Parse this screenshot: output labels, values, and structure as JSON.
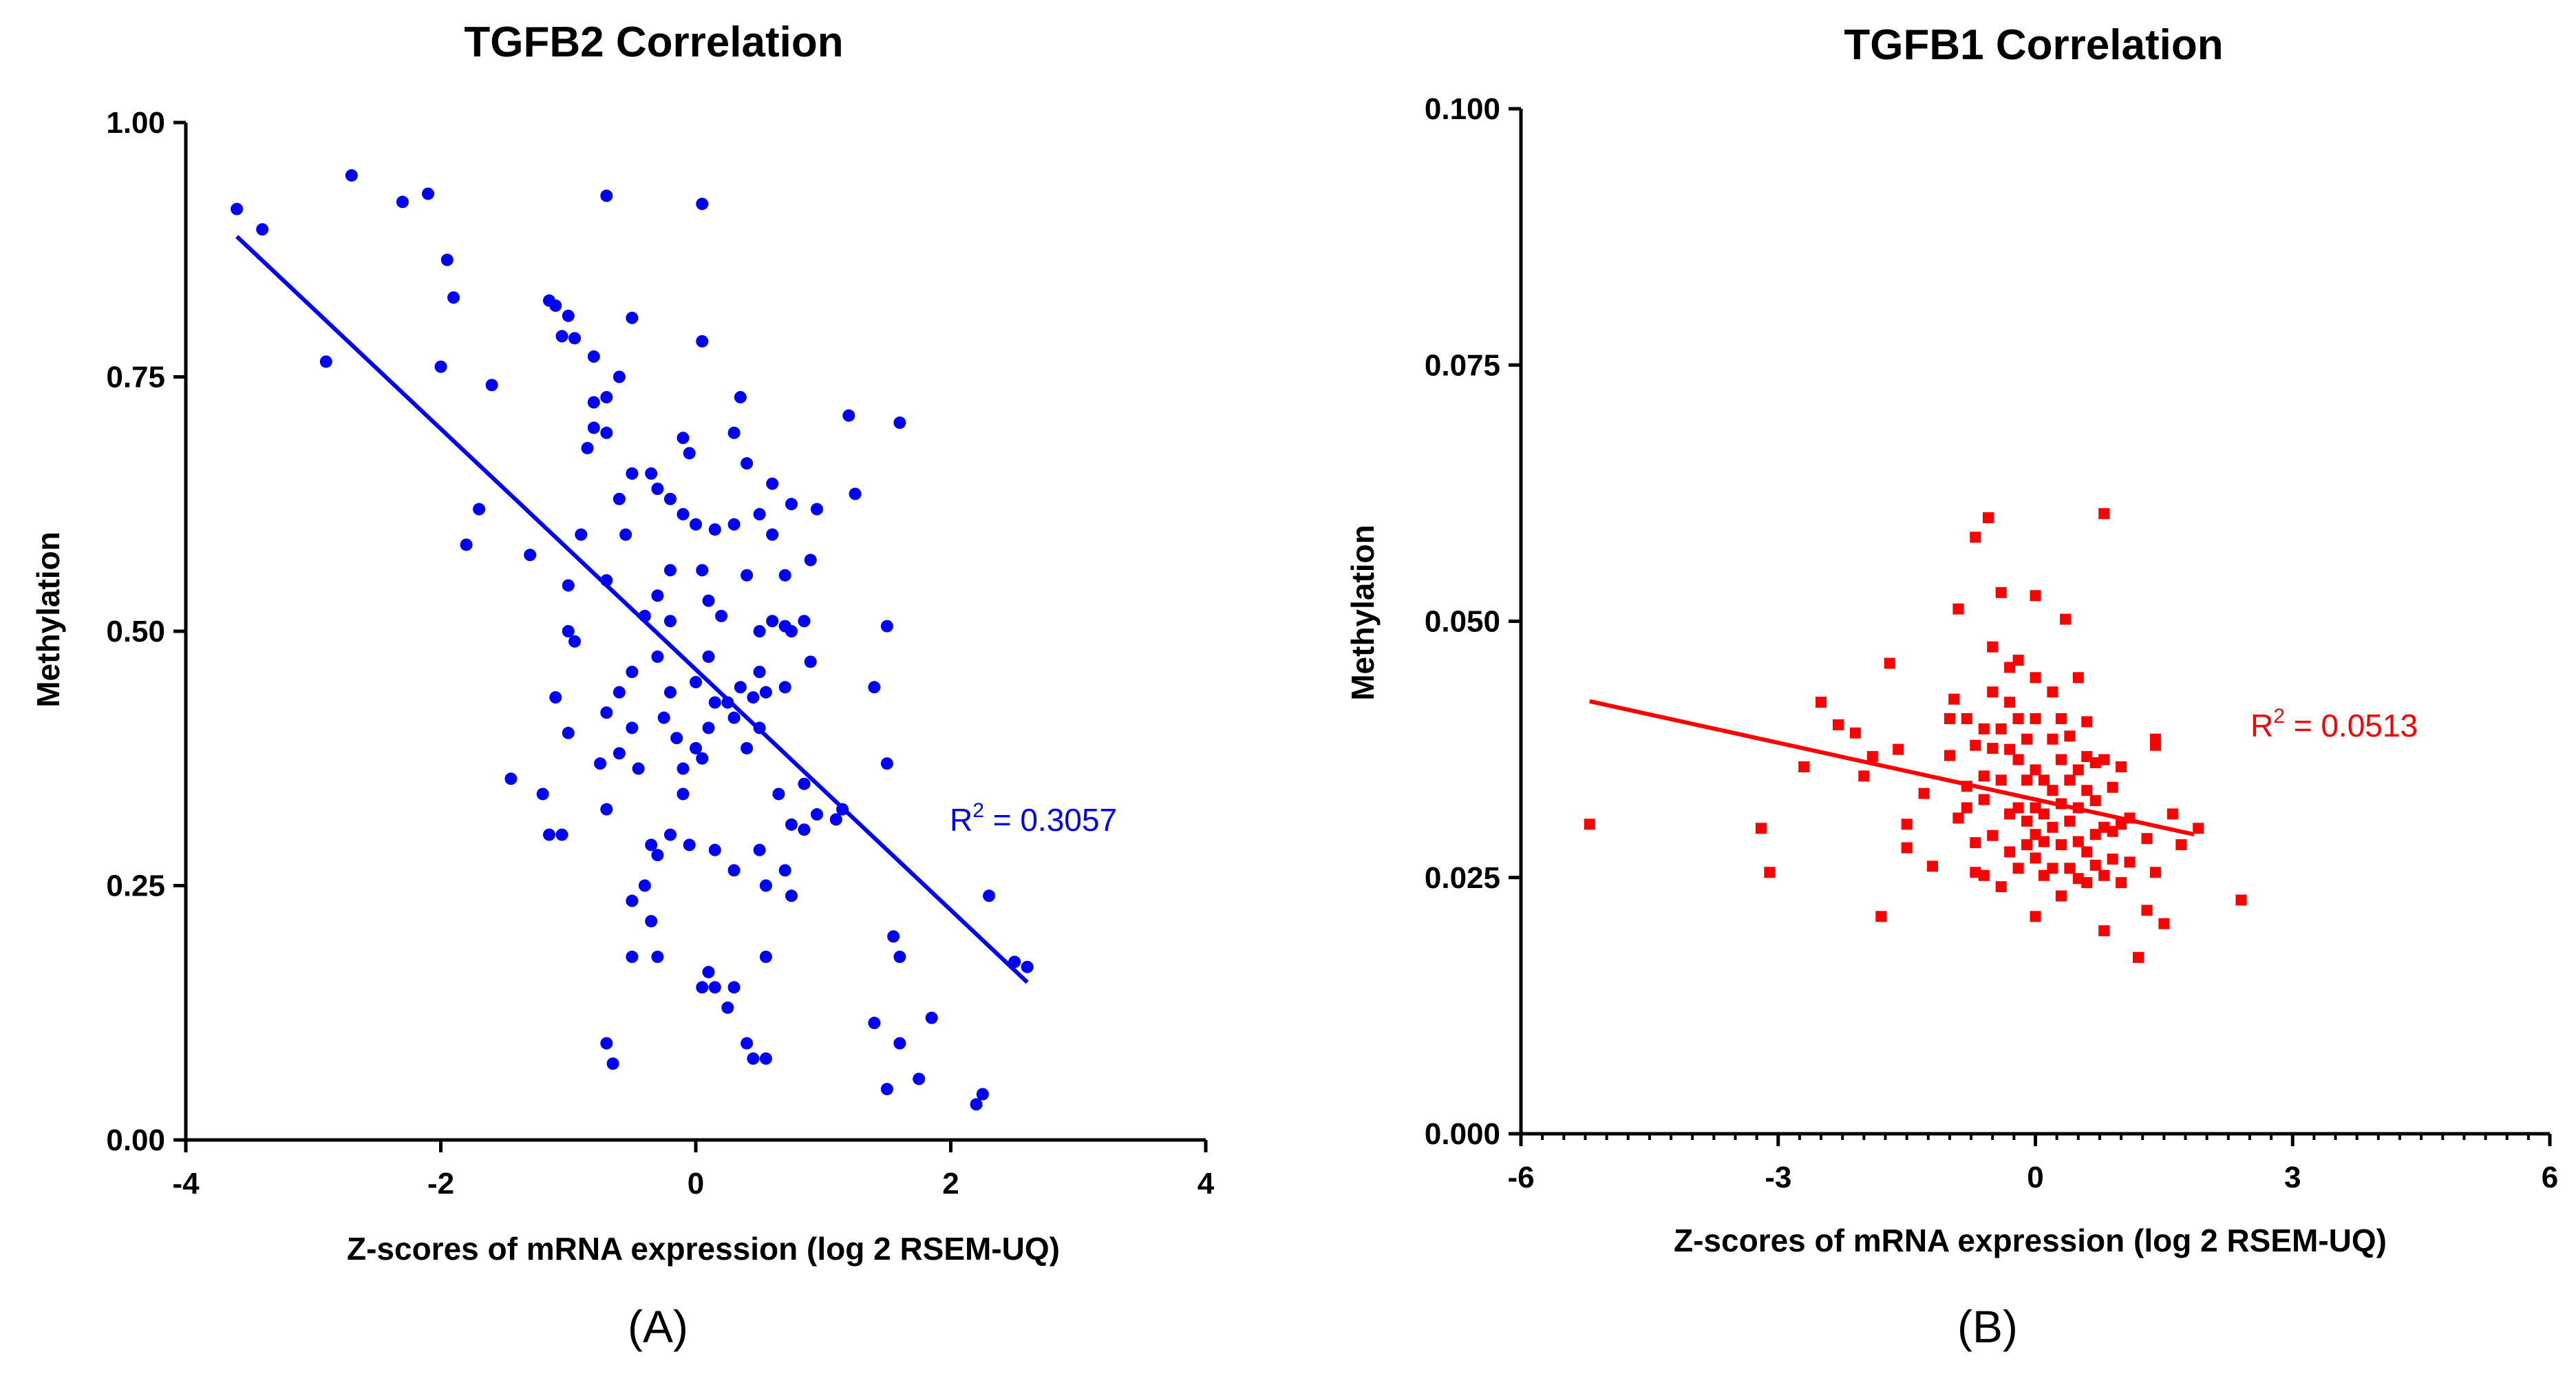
{
  "chart_data": [
    {
      "type": "scatter",
      "panel_label": "(A)",
      "title": "TGFB2 Correlation",
      "xlabel": "Z-scores of mRNA expression (log 2 RSEM-UQ)",
      "ylabel": "Methylation",
      "xlim": [
        -4,
        4
      ],
      "ylim": [
        0,
        1
      ],
      "xticks": [
        -4,
        -2,
        0,
        2,
        4
      ],
      "xtick_labels": [
        "-4",
        "-2",
        "0",
        "2",
        "4"
      ],
      "yticks": [
        0,
        0.25,
        0.5,
        0.75,
        1
      ],
      "ytick_labels": [
        "0.00",
        "0.25",
        "0.50",
        "0.75",
        "1.00"
      ],
      "minor_ticks": false,
      "color": "#0000ff",
      "marker": "circle",
      "annotation": {
        "prefix": "R",
        "sup": "2",
        "suffix": " = 0.3057",
        "position": "right of line, below middle"
      },
      "fit_line": {
        "x1": -3.6,
        "y1": 0.888,
        "x2": 2.6,
        "y2": 0.155
      },
      "points": [
        [
          -3.6,
          0.915
        ],
        [
          -3.4,
          0.895
        ],
        [
          -2.7,
          0.948
        ],
        [
          -2.3,
          0.922
        ],
        [
          -2.1,
          0.93
        ],
        [
          -1.95,
          0.865
        ],
        [
          -1.9,
          0.828
        ],
        [
          -2.9,
          0.765
        ],
        [
          -2.0,
          0.76
        ],
        [
          -1.6,
          0.742
        ],
        [
          -1.7,
          0.62
        ],
        [
          -1.8,
          0.585
        ],
        [
          -1.3,
          0.575
        ],
        [
          -0.7,
          0.928
        ],
        [
          0.05,
          0.92
        ],
        [
          -1.15,
          0.825
        ],
        [
          -1.1,
          0.82
        ],
        [
          -1.0,
          0.81
        ],
        [
          -1.05,
          0.79
        ],
        [
          -0.95,
          0.788
        ],
        [
          -0.8,
          0.77
        ],
        [
          -0.5,
          0.808
        ],
        [
          0.05,
          0.785
        ],
        [
          -0.6,
          0.75
        ],
        [
          -0.7,
          0.73
        ],
        [
          -0.8,
          0.725
        ],
        [
          -0.8,
          0.7
        ],
        [
          -0.7,
          0.695
        ],
        [
          -0.85,
          0.68
        ],
        [
          0.35,
          0.73
        ],
        [
          0.3,
          0.695
        ],
        [
          0.4,
          0.665
        ],
        [
          0.6,
          0.645
        ],
        [
          1.2,
          0.712
        ],
        [
          1.6,
          0.705
        ],
        [
          1.25,
          0.635
        ],
        [
          -0.1,
          0.69
        ],
        [
          -0.05,
          0.675
        ],
        [
          -0.5,
          0.655
        ],
        [
          -0.35,
          0.655
        ],
        [
          -0.6,
          0.63
        ],
        [
          -0.3,
          0.64
        ],
        [
          -0.2,
          0.63
        ],
        [
          -0.1,
          0.615
        ],
        [
          0.0,
          0.605
        ],
        [
          0.15,
          0.6
        ],
        [
          0.3,
          0.605
        ],
        [
          0.5,
          0.615
        ],
        [
          0.6,
          0.595
        ],
        [
          0.75,
          0.625
        ],
        [
          0.95,
          0.62
        ],
        [
          0.9,
          0.57
        ],
        [
          -0.9,
          0.595
        ],
        [
          -0.55,
          0.595
        ],
        [
          -0.2,
          0.56
        ],
        [
          0.05,
          0.56
        ],
        [
          0.4,
          0.555
        ],
        [
          0.7,
          0.555
        ],
        [
          -0.7,
          0.55
        ],
        [
          -0.3,
          0.535
        ],
        [
          0.1,
          0.53
        ],
        [
          -1.0,
          0.545
        ],
        [
          -1.0,
          0.5
        ],
        [
          -0.95,
          0.49
        ],
        [
          -0.4,
          0.515
        ],
        [
          -0.2,
          0.51
        ],
        [
          0.2,
          0.515
        ],
        [
          0.5,
          0.5
        ],
        [
          0.6,
          0.51
        ],
        [
          0.7,
          0.505
        ],
        [
          0.75,
          0.5
        ],
        [
          0.85,
          0.51
        ],
        [
          1.5,
          0.505
        ],
        [
          0.9,
          0.47
        ],
        [
          1.4,
          0.445
        ],
        [
          0.1,
          0.475
        ],
        [
          0.5,
          0.46
        ],
        [
          -0.5,
          0.46
        ],
        [
          -0.3,
          0.475
        ],
        [
          0.35,
          0.445
        ],
        [
          0.45,
          0.435
        ],
        [
          -0.6,
          0.44
        ],
        [
          -1.1,
          0.435
        ],
        [
          -0.2,
          0.44
        ],
        [
          0.0,
          0.45
        ],
        [
          0.15,
          0.43
        ],
        [
          0.25,
          0.43
        ],
        [
          0.55,
          0.44
        ],
        [
          0.7,
          0.445
        ],
        [
          -0.7,
          0.42
        ],
        [
          -0.25,
          0.415
        ],
        [
          -0.15,
          0.395
        ],
        [
          0.1,
          0.405
        ],
        [
          0.3,
          0.415
        ],
        [
          0.5,
          0.405
        ],
        [
          -1.0,
          0.4
        ],
        [
          -0.5,
          0.405
        ],
        [
          0.0,
          0.385
        ],
        [
          0.05,
          0.375
        ],
        [
          -0.1,
          0.365
        ],
        [
          0.4,
          0.385
        ],
        [
          -0.75,
          0.37
        ],
        [
          -0.6,
          0.38
        ],
        [
          -0.45,
          0.365
        ],
        [
          -1.45,
          0.355
        ],
        [
          -1.2,
          0.34
        ],
        [
          -0.1,
          0.34
        ],
        [
          0.65,
          0.34
        ],
        [
          0.85,
          0.35
        ],
        [
          0.75,
          0.31
        ],
        [
          0.95,
          0.32
        ],
        [
          1.15,
          0.325
        ],
        [
          -1.05,
          0.3
        ],
        [
          -1.15,
          0.3
        ],
        [
          -0.7,
          0.325
        ],
        [
          -0.35,
          0.29
        ],
        [
          -0.2,
          0.3
        ],
        [
          -0.05,
          0.29
        ],
        [
          0.15,
          0.285
        ],
        [
          0.5,
          0.285
        ],
        [
          0.85,
          0.305
        ],
        [
          1.1,
          0.315
        ],
        [
          -0.4,
          0.25
        ],
        [
          -0.3,
          0.28
        ],
        [
          0.3,
          0.265
        ],
        [
          0.55,
          0.25
        ],
        [
          0.7,
          0.265
        ],
        [
          -0.5,
          0.235
        ],
        [
          -0.35,
          0.215
        ],
        [
          0.75,
          0.24
        ],
        [
          1.5,
          0.37
        ],
        [
          2.3,
          0.24
        ],
        [
          1.55,
          0.2
        ],
        [
          1.6,
          0.18
        ],
        [
          2.5,
          0.175
        ],
        [
          2.6,
          0.17
        ],
        [
          -0.5,
          0.18
        ],
        [
          -0.3,
          0.18
        ],
        [
          0.1,
          0.165
        ],
        [
          0.3,
          0.15
        ],
        [
          0.55,
          0.18
        ],
        [
          0.05,
          0.15
        ],
        [
          0.15,
          0.15
        ],
        [
          0.25,
          0.13
        ],
        [
          0.4,
          0.095
        ],
        [
          0.45,
          0.08
        ],
        [
          0.55,
          0.08
        ],
        [
          -0.7,
          0.095
        ],
        [
          -0.65,
          0.075
        ],
        [
          1.4,
          0.115
        ],
        [
          1.6,
          0.095
        ],
        [
          1.85,
          0.12
        ],
        [
          1.75,
          0.06
        ],
        [
          1.5,
          0.05
        ],
        [
          2.2,
          0.035
        ],
        [
          2.25,
          0.045
        ]
      ]
    },
    {
      "type": "scatter",
      "panel_label": "(B)",
      "title": "TGFB1 Correlation",
      "xlabel": "Z-scores of mRNA expression (log 2 RSEM-UQ)",
      "ylabel": "Methylation",
      "xlim": [
        -6,
        6
      ],
      "ylim": [
        0,
        0.1
      ],
      "xticks": [
        -6,
        -3,
        0,
        3,
        6
      ],
      "xtick_labels": [
        "-6",
        "-3",
        "0",
        "3",
        "6"
      ],
      "yticks": [
        0,
        0.025,
        0.05,
        0.075,
        0.1
      ],
      "ytick_labels": [
        "0.000",
        "0.025",
        "0.050",
        "0.075",
        "0.100"
      ],
      "minor_ticks": true,
      "color": "#ff0000",
      "marker": "square",
      "annotation": {
        "prefix": "R",
        "sup": "2",
        "suffix": " = 0.0513",
        "position": "upper right"
      },
      "fit_line": {
        "x1": -5.2,
        "y1": 0.0422,
        "x2": 1.85,
        "y2": 0.0292
      },
      "points": [
        [
          -5.2,
          0.0302
        ],
        [
          -3.2,
          0.0298
        ],
        [
          -3.1,
          0.0255
        ],
        [
          -2.7,
          0.0358
        ],
        [
          -2.5,
          0.0421
        ],
        [
          -2.3,
          0.0399
        ],
        [
          -2.1,
          0.0391
        ],
        [
          -2.0,
          0.0349
        ],
        [
          -1.9,
          0.0368
        ],
        [
          -1.8,
          0.0212
        ],
        [
          -1.7,
          0.0459
        ],
        [
          -1.6,
          0.0375
        ],
        [
          -1.5,
          0.0302
        ],
        [
          -1.5,
          0.0279
        ],
        [
          -1.3,
          0.0332
        ],
        [
          -1.2,
          0.0261
        ],
        [
          -1.0,
          0.0369
        ],
        [
          -1.0,
          0.0405
        ],
        [
          -0.95,
          0.0424
        ],
        [
          -0.9,
          0.0308
        ],
        [
          -0.9,
          0.0512
        ],
        [
          -0.8,
          0.0405
        ],
        [
          -0.8,
          0.0339
        ],
        [
          -0.8,
          0.0318
        ],
        [
          -0.7,
          0.0379
        ],
        [
          -0.7,
          0.0284
        ],
        [
          -0.7,
          0.0255
        ],
        [
          -0.7,
          0.0582
        ],
        [
          -0.6,
          0.0395
        ],
        [
          -0.6,
          0.0349
        ],
        [
          -0.6,
          0.0326
        ],
        [
          -0.6,
          0.0252
        ],
        [
          -0.55,
          0.0601
        ],
        [
          -0.5,
          0.0475
        ],
        [
          -0.5,
          0.0431
        ],
        [
          -0.5,
          0.0376
        ],
        [
          -0.5,
          0.0291
        ],
        [
          -0.4,
          0.0528
        ],
        [
          -0.4,
          0.0395
        ],
        [
          -0.4,
          0.0345
        ],
        [
          -0.4,
          0.0241
        ],
        [
          -0.3,
          0.0455
        ],
        [
          -0.3,
          0.0421
        ],
        [
          -0.3,
          0.0375
        ],
        [
          -0.3,
          0.0312
        ],
        [
          -0.3,
          0.0275
        ],
        [
          -0.2,
          0.0462
        ],
        [
          -0.2,
          0.0405
        ],
        [
          -0.2,
          0.0365
        ],
        [
          -0.2,
          0.0318
        ],
        [
          -0.2,
          0.0259
        ],
        [
          -0.1,
          0.0385
        ],
        [
          -0.1,
          0.0345
        ],
        [
          -0.1,
          0.0305
        ],
        [
          -0.1,
          0.0282
        ],
        [
          0.0,
          0.0525
        ],
        [
          0.0,
          0.0445
        ],
        [
          0.0,
          0.0405
        ],
        [
          0.0,
          0.0355
        ],
        [
          0.0,
          0.0318
        ],
        [
          0.0,
          0.0292
        ],
        [
          0.0,
          0.0269
        ],
        [
          0.0,
          0.0212
        ],
        [
          0.1,
          0.0345
        ],
        [
          0.1,
          0.0312
        ],
        [
          0.1,
          0.0285
        ],
        [
          0.1,
          0.0252
        ],
        [
          0.2,
          0.0431
        ],
        [
          0.2,
          0.0385
        ],
        [
          0.2,
          0.0335
        ],
        [
          0.2,
          0.0299
        ],
        [
          0.2,
          0.0259
        ],
        [
          0.3,
          0.0405
        ],
        [
          0.3,
          0.0365
        ],
        [
          0.3,
          0.0322
        ],
        [
          0.3,
          0.0282
        ],
        [
          0.3,
          0.0232
        ],
        [
          0.35,
          0.0502
        ],
        [
          0.4,
          0.0388
        ],
        [
          0.4,
          0.0345
        ],
        [
          0.4,
          0.0305
        ],
        [
          0.4,
          0.0259
        ],
        [
          0.5,
          0.0445
        ],
        [
          0.5,
          0.0355
        ],
        [
          0.5,
          0.0318
        ],
        [
          0.5,
          0.0285
        ],
        [
          0.5,
          0.0249
        ],
        [
          0.6,
          0.0402
        ],
        [
          0.6,
          0.0368
        ],
        [
          0.6,
          0.0335
        ],
        [
          0.6,
          0.0275
        ],
        [
          0.6,
          0.0245
        ],
        [
          0.7,
          0.0362
        ],
        [
          0.7,
          0.0325
        ],
        [
          0.7,
          0.0292
        ],
        [
          0.7,
          0.0262
        ],
        [
          0.8,
          0.0605
        ],
        [
          0.8,
          0.0365
        ],
        [
          0.8,
          0.0299
        ],
        [
          0.8,
          0.0252
        ],
        [
          0.8,
          0.0198
        ],
        [
          0.9,
          0.0338
        ],
        [
          0.9,
          0.0295
        ],
        [
          0.9,
          0.0268
        ],
        [
          1.0,
          0.0358
        ],
        [
          1.0,
          0.0302
        ],
        [
          1.0,
          0.0245
        ],
        [
          1.1,
          0.0308
        ],
        [
          1.1,
          0.0265
        ],
        [
          1.2,
          0.0172
        ],
        [
          1.3,
          0.0288
        ],
        [
          1.3,
          0.0218
        ],
        [
          1.4,
          0.0385
        ],
        [
          1.4,
          0.0379
        ],
        [
          1.4,
          0.0255
        ],
        [
          1.5,
          0.0205
        ],
        [
          1.6,
          0.0312
        ],
        [
          1.7,
          0.0282
        ],
        [
          1.9,
          0.0298
        ],
        [
          2.4,
          0.0228
        ]
      ]
    }
  ]
}
